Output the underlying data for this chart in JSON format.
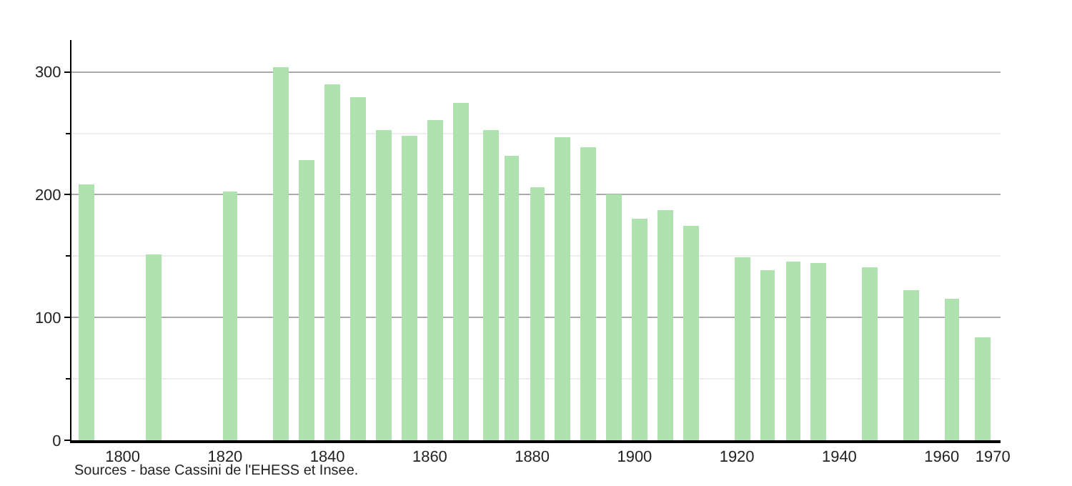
{
  "chart_data": {
    "type": "bar",
    "x": [
      1793,
      1806,
      1821,
      1831,
      1836,
      1841,
      1846,
      1851,
      1856,
      1861,
      1866,
      1872,
      1876,
      1881,
      1886,
      1891,
      1896,
      1901,
      1906,
      1911,
      1921,
      1926,
      1931,
      1936,
      1946,
      1954,
      1962,
      1968
    ],
    "values": [
      208,
      151,
      203,
      304,
      228,
      290,
      280,
      253,
      248,
      261,
      275,
      253,
      232,
      206,
      247,
      239,
      200,
      180,
      187,
      175,
      149,
      139,
      146,
      144,
      141,
      122,
      115,
      84
    ],
    "color": "#b0e2b0",
    "xlim": [
      1790,
      1971.5
    ],
    "xticks": [
      1800,
      1820,
      1840,
      1860,
      1880,
      1900,
      1920,
      1940,
      1960,
      1970
    ],
    "ylim": [
      0,
      326
    ],
    "yticks": [
      0,
      {
        "value": 50,
        "label": null
      },
      100,
      {
        "value": 150,
        "label": null
      },
      200,
      {
        "value": 250,
        "label": null
      },
      300
    ],
    "grid": "y",
    "annotations": [
      "Sources - base Cassini de l'EHESS et Insee."
    ]
  }
}
